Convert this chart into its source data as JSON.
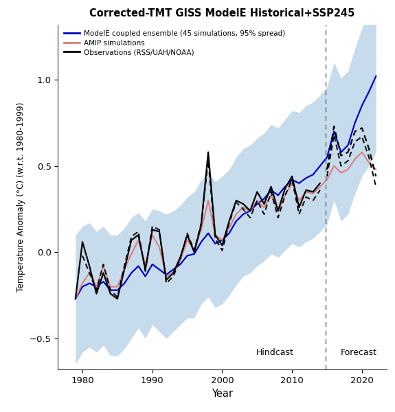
{
  "title": "Corrected-TMT GISS ModelE Historical+SSP245",
  "xlabel": "Year",
  "ylabel": "Temperature Anomaly (°C) (w.r.t. 1980-1999)",
  "xlim": [
    1976.5,
    2023.5
  ],
  "ylim": [
    -0.68,
    1.32
  ],
  "yticks": [
    -0.5,
    0.0,
    0.5,
    1.0
  ],
  "xticks": [
    1980,
    1990,
    2000,
    2010,
    2020
  ],
  "hindcast_year": 2014.8,
  "shade_color": "#c6dcec",
  "ensemble_color": "#0000cc",
  "amip_color": "#e07878",
  "obs_color": "#000000",
  "legend_labels": [
    "ModelE coupled ensemble (45 simulations, 95% spread)",
    "AMIP simulations",
    "Observations (RSS/UAH/NOAA)"
  ],
  "years": [
    1979,
    1980,
    1981,
    1982,
    1983,
    1984,
    1985,
    1986,
    1987,
    1988,
    1989,
    1990,
    1991,
    1992,
    1993,
    1994,
    1995,
    1996,
    1997,
    1998,
    1999,
    2000,
    2001,
    2002,
    2003,
    2004,
    2005,
    2006,
    2007,
    2008,
    2009,
    2010,
    2011,
    2012,
    2013,
    2014,
    2015,
    2016,
    2017,
    2018,
    2019,
    2020,
    2021,
    2022
  ],
  "ensemble_mean": [
    -0.27,
    -0.2,
    -0.18,
    -0.2,
    -0.17,
    -0.22,
    -0.22,
    -0.18,
    -0.12,
    -0.08,
    -0.14,
    -0.07,
    -0.1,
    -0.13,
    -0.1,
    -0.07,
    -0.02,
    -0.01,
    0.06,
    0.11,
    0.05,
    0.07,
    0.11,
    0.18,
    0.22,
    0.24,
    0.28,
    0.31,
    0.36,
    0.33,
    0.38,
    0.42,
    0.4,
    0.43,
    0.45,
    0.5,
    0.55,
    0.7,
    0.58,
    0.62,
    0.75,
    0.85,
    0.93,
    1.02
  ],
  "ensemble_upper": [
    0.1,
    0.15,
    0.17,
    0.12,
    0.15,
    0.1,
    0.1,
    0.14,
    0.2,
    0.23,
    0.18,
    0.25,
    0.24,
    0.22,
    0.24,
    0.27,
    0.32,
    0.35,
    0.42,
    0.46,
    0.41,
    0.44,
    0.48,
    0.55,
    0.6,
    0.62,
    0.66,
    0.69,
    0.74,
    0.72,
    0.77,
    0.82,
    0.81,
    0.85,
    0.87,
    0.91,
    0.96,
    1.1,
    1.01,
    1.05,
    1.18,
    1.3,
    1.38,
    1.47
  ],
  "ensemble_lower": [
    -0.65,
    -0.58,
    -0.55,
    -0.58,
    -0.54,
    -0.6,
    -0.6,
    -0.56,
    -0.5,
    -0.44,
    -0.5,
    -0.42,
    -0.46,
    -0.5,
    -0.46,
    -0.42,
    -0.38,
    -0.38,
    -0.3,
    -0.26,
    -0.32,
    -0.3,
    -0.25,
    -0.19,
    -0.14,
    -0.12,
    -0.08,
    -0.05,
    -0.01,
    -0.03,
    0.01,
    0.05,
    0.03,
    0.06,
    0.08,
    0.12,
    0.16,
    0.3,
    0.18,
    0.22,
    0.34,
    0.44,
    0.5,
    0.58
  ],
  "amip": [
    -0.27,
    -0.18,
    -0.12,
    -0.2,
    -0.08,
    -0.2,
    -0.2,
    -0.1,
    -0.01,
    0.07,
    -0.07,
    0.1,
    0.03,
    -0.14,
    -0.12,
    -0.05,
    0.07,
    0.02,
    0.13,
    0.3,
    0.1,
    0.07,
    0.14,
    0.22,
    0.26,
    0.24,
    0.3,
    0.26,
    0.33,
    0.24,
    0.33,
    0.4,
    0.3,
    0.35,
    0.34,
    0.38,
    0.42,
    0.5,
    0.46,
    0.48,
    0.54,
    0.58,
    0.52,
    0.48
  ],
  "obs_main": [
    -0.27,
    0.06,
    -0.08,
    -0.24,
    -0.12,
    -0.24,
    -0.27,
    -0.1,
    0.07,
    0.1,
    -0.1,
    0.13,
    0.12,
    -0.16,
    -0.12,
    -0.03,
    0.1,
    0.0,
    0.16,
    0.58,
    0.1,
    0.04,
    0.18,
    0.3,
    0.28,
    0.24,
    0.35,
    0.28,
    0.38,
    0.24,
    0.37,
    0.44,
    0.26,
    0.36,
    0.35,
    0.4,
    null,
    null,
    null,
    null,
    null,
    null,
    null,
    null
  ],
  "obs_dash1": [
    null,
    -0.02,
    -0.12,
    -0.22,
    -0.07,
    -0.22,
    -0.26,
    -0.08,
    0.09,
    0.12,
    -0.11,
    0.15,
    0.13,
    -0.18,
    -0.14,
    -0.04,
    0.11,
    0.01,
    0.17,
    0.53,
    0.08,
    0.01,
    0.17,
    0.29,
    0.25,
    0.2,
    0.3,
    0.22,
    0.35,
    0.2,
    0.33,
    0.42,
    0.22,
    0.32,
    0.3,
    0.36,
    null,
    null,
    null,
    null,
    null,
    null,
    null,
    null
  ],
  "obs_forecast_solid": [
    null,
    null,
    null,
    null,
    null,
    null,
    null,
    null,
    null,
    null,
    null,
    null,
    null,
    null,
    null,
    null,
    null,
    null,
    null,
    null,
    null,
    null,
    null,
    null,
    null,
    null,
    null,
    null,
    null,
    null,
    null,
    null,
    null,
    null,
    null,
    null,
    0.48,
    0.73,
    0.56,
    0.58,
    0.7,
    0.72,
    0.6,
    0.44
  ],
  "obs_forecast_dash": [
    null,
    null,
    null,
    null,
    null,
    null,
    null,
    null,
    null,
    null,
    null,
    null,
    null,
    null,
    null,
    null,
    null,
    null,
    null,
    null,
    null,
    null,
    null,
    null,
    null,
    null,
    null,
    null,
    null,
    null,
    null,
    null,
    null,
    null,
    null,
    null,
    0.44,
    0.68,
    0.5,
    0.53,
    0.64,
    0.67,
    0.55,
    0.38
  ]
}
